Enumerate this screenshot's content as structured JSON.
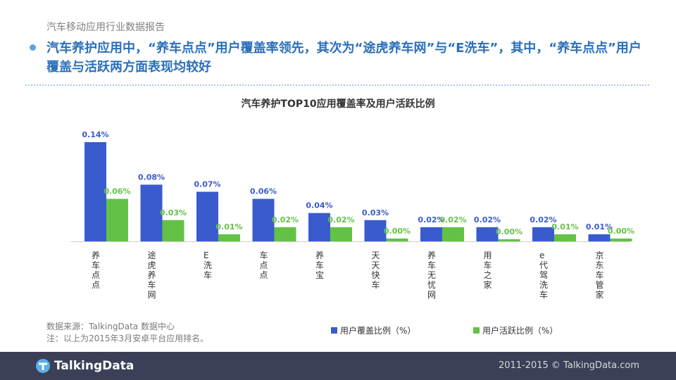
{
  "header": {
    "subtitle": "汽车移动应用行业数据报告",
    "headline": "汽车养护应用中，“养车点点”用户覆盖率领先，其次为“途虎养车网”与“E洗车”，其中，“养车点点”用户覆盖与活跃两方面表现均较好"
  },
  "chart_data": {
    "type": "bar",
    "title": "汽车养护TOP10应用覆盖率及用户活跃比例",
    "categories": [
      "养车点点",
      "途虎养车网",
      "E洗车",
      "车点点",
      "养车宝",
      "天天快车",
      "养车无忧网",
      "用车之家",
      "e代驾洗车",
      "京东车管家"
    ],
    "series": [
      {
        "name": "用户覆盖比例（%）",
        "color": "#3a5bcd",
        "values": [
          0.14,
          0.08,
          0.07,
          0.06,
          0.04,
          0.03,
          0.02,
          0.02,
          0.02,
          0.01
        ],
        "labels": [
          "0.14%",
          "0.08%",
          "0.07%",
          "0.06%",
          "0.04%",
          "0.03%",
          "0.02%",
          "0.02%",
          "0.02%",
          "0.01%"
        ]
      },
      {
        "name": "用户活跃比例（%）",
        "color": "#63c246",
        "values": [
          0.06,
          0.03,
          0.01,
          0.02,
          0.02,
          0.004,
          0.02,
          0.003,
          0.01,
          0.004
        ],
        "labels": [
          "0.06%",
          "0.03%",
          "0.01%",
          "0.02%",
          "0.02%",
          "0.00%",
          "0.02%",
          "0.00%",
          "0.01%",
          "0.00%"
        ]
      }
    ],
    "ylim": [
      0,
      0.14
    ],
    "legend_position": "bottom-right",
    "grid": false
  },
  "source": {
    "line1": "数据来源：TalkingData 数据中心",
    "line2": "注：以上为2015年3月安卓平台应用排名。"
  },
  "footer": {
    "logo_text": "TalkingData",
    "copyright": "2011-2015 © TalkingData.com"
  }
}
